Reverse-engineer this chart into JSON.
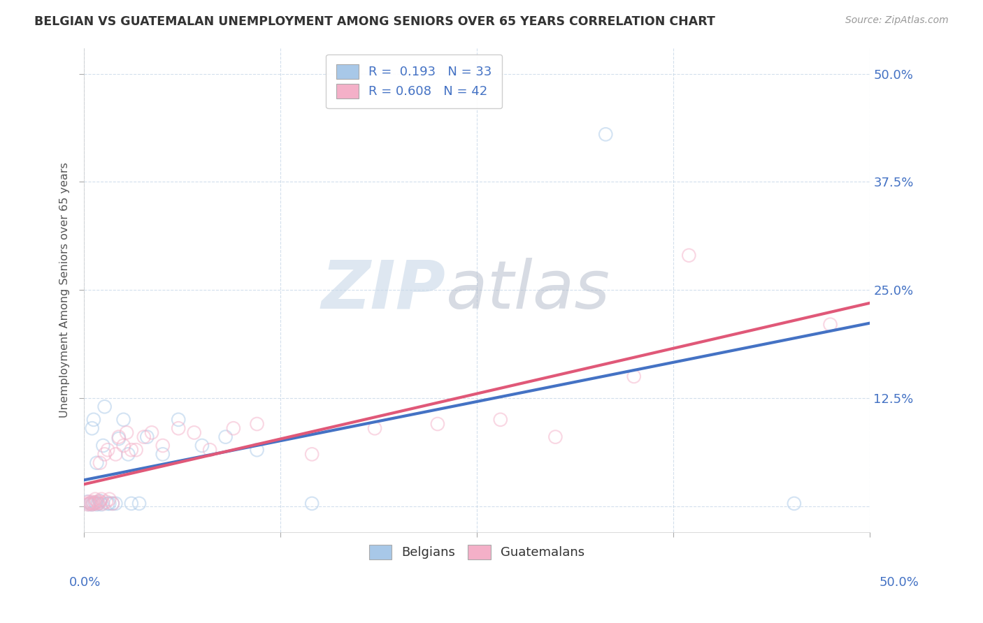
{
  "title": "BELGIAN VS GUATEMALAN UNEMPLOYMENT AMONG SENIORS OVER 65 YEARS CORRELATION CHART",
  "source": "Source: ZipAtlas.com",
  "ylabel": "Unemployment Among Seniors over 65 years",
  "belgian_R": 0.193,
  "belgian_N": 33,
  "guatemalan_R": 0.608,
  "guatemalan_N": 42,
  "belgian_color": "#a8c8e8",
  "guatemalan_color": "#f4b0c8",
  "belgian_line_color": "#4472c4",
  "guatemalan_line_color": "#e05878",
  "label_color": "#4472c4",
  "background_color": "#ffffff",
  "xlim": [
    0.0,
    0.5
  ],
  "ylim": [
    -0.03,
    0.53
  ],
  "right_ytick_values": [
    0.0,
    0.125,
    0.25,
    0.375,
    0.5
  ],
  "right_yticklabels": [
    "",
    "12.5%",
    "25.0%",
    "37.5%",
    "50.0%"
  ],
  "belgian_x": [
    0.002,
    0.003,
    0.004,
    0.005,
    0.005,
    0.006,
    0.006,
    0.007,
    0.008,
    0.008,
    0.009,
    0.01,
    0.011,
    0.012,
    0.013,
    0.015,
    0.016,
    0.018,
    0.02,
    0.022,
    0.025,
    0.028,
    0.03,
    0.035,
    0.04,
    0.05,
    0.06,
    0.075,
    0.09,
    0.11,
    0.145,
    0.332,
    0.452
  ],
  "belgian_y": [
    0.005,
    0.002,
    0.003,
    0.002,
    0.09,
    0.003,
    0.1,
    0.004,
    0.002,
    0.05,
    0.003,
    0.006,
    0.002,
    0.07,
    0.115,
    0.003,
    0.003,
    0.003,
    0.003,
    0.078,
    0.1,
    0.06,
    0.003,
    0.003,
    0.08,
    0.06,
    0.1,
    0.07,
    0.08,
    0.065,
    0.003,
    0.43,
    0.003
  ],
  "guatemalan_x": [
    0.002,
    0.003,
    0.003,
    0.004,
    0.005,
    0.005,
    0.006,
    0.007,
    0.007,
    0.008,
    0.009,
    0.01,
    0.01,
    0.011,
    0.012,
    0.013,
    0.014,
    0.015,
    0.016,
    0.018,
    0.02,
    0.022,
    0.025,
    0.027,
    0.03,
    0.033,
    0.038,
    0.043,
    0.05,
    0.06,
    0.07,
    0.08,
    0.095,
    0.11,
    0.145,
    0.185,
    0.225,
    0.265,
    0.3,
    0.35,
    0.385,
    0.475
  ],
  "guatemalan_y": [
    0.002,
    0.003,
    0.005,
    0.003,
    0.002,
    0.005,
    0.003,
    0.003,
    0.008,
    0.005,
    0.003,
    0.005,
    0.05,
    0.008,
    0.003,
    0.06,
    0.005,
    0.065,
    0.008,
    0.003,
    0.06,
    0.08,
    0.07,
    0.085,
    0.065,
    0.065,
    0.08,
    0.085,
    0.07,
    0.09,
    0.085,
    0.065,
    0.09,
    0.095,
    0.06,
    0.09,
    0.095,
    0.1,
    0.08,
    0.15,
    0.29,
    0.21
  ],
  "watermark_zip": "ZIP",
  "watermark_atlas": "atlas",
  "legend_text_color": "#4472c4",
  "marker_size": 180,
  "marker_alpha": 0.5,
  "marker_linewidth": 1.5,
  "grid_color": "#c8d8e8",
  "grid_linestyle": "--",
  "grid_alpha": 0.8
}
